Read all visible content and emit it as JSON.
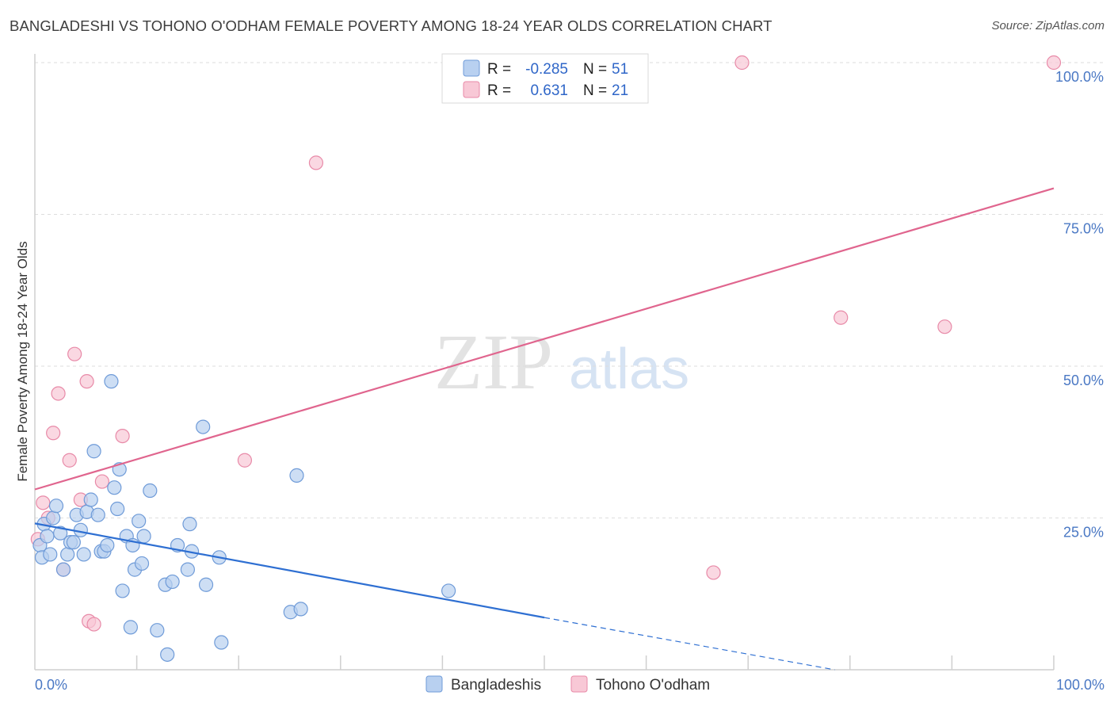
{
  "header": {
    "title": "BANGLADESHI VS TOHONO O'ODHAM FEMALE POVERTY AMONG 18-24 YEAR OLDS CORRELATION CHART",
    "source": "Source: ZipAtlas.com"
  },
  "watermark": {
    "zip": "ZIP",
    "atlas": "atlas"
  },
  "legend_top": {
    "rows": [
      {
        "r_label": "R =",
        "r_value": "-0.285",
        "n_label": "N =",
        "n_value": "51"
      },
      {
        "r_label": "R =",
        "r_value": "0.631",
        "n_label": "N =",
        "n_value": "21"
      }
    ]
  },
  "chart_data": {
    "type": "scatter",
    "title": "BANGLADESHI VS TOHONO O'ODHAM FEMALE POVERTY AMONG 18-24 YEAR OLDS CORRELATION CHART",
    "xlabel": "",
    "ylabel": "Female Poverty Among 18-24 Year Olds",
    "xlim": [
      0,
      100
    ],
    "ylim": [
      0,
      100
    ],
    "x_tick_labels": [
      "0.0%",
      "100.0%"
    ],
    "y_ticks": [
      25,
      50,
      75,
      100
    ],
    "y_tick_labels": [
      "25.0%",
      "50.0%",
      "75.0%",
      "100.0%"
    ],
    "grid": true,
    "legend_position": "bottom-center",
    "colors": {
      "blue_fill": "#b8d0f0",
      "blue_stroke": "#6f9bd8",
      "blue_line": "#2e6fd2",
      "pink_fill": "#f8c8d6",
      "pink_stroke": "#e88aa8",
      "pink_line": "#e0658e",
      "value_text": "#2f66c8"
    },
    "series": [
      {
        "name": "Bangladeshis",
        "r": -0.285,
        "n": 51,
        "trend": {
          "x0": 0,
          "y0": 24.1,
          "x1": 50,
          "y1": 8.6,
          "dashed_to_x": 78.5,
          "dashed_to_y": 0
        },
        "points": [
          [
            0.5,
            20.5
          ],
          [
            0.7,
            18.5
          ],
          [
            0.9,
            24.0
          ],
          [
            1.2,
            22.0
          ],
          [
            1.5,
            19.0
          ],
          [
            1.8,
            25.0
          ],
          [
            2.1,
            27.0
          ],
          [
            2.5,
            22.5
          ],
          [
            2.8,
            16.5
          ],
          [
            3.2,
            19.0
          ],
          [
            3.5,
            21.0
          ],
          [
            3.8,
            21.0
          ],
          [
            4.1,
            25.5
          ],
          [
            4.5,
            23.0
          ],
          [
            4.8,
            19.0
          ],
          [
            5.1,
            26.0
          ],
          [
            5.5,
            28.0
          ],
          [
            5.8,
            36.0
          ],
          [
            6.2,
            25.5
          ],
          [
            6.5,
            19.5
          ],
          [
            6.8,
            19.5
          ],
          [
            7.1,
            20.5
          ],
          [
            7.5,
            47.5
          ],
          [
            7.8,
            30.0
          ],
          [
            8.1,
            26.5
          ],
          [
            8.3,
            33.0
          ],
          [
            8.6,
            13.0
          ],
          [
            9.0,
            22.0
          ],
          [
            9.4,
            7.0
          ],
          [
            9.6,
            20.5
          ],
          [
            9.8,
            16.5
          ],
          [
            10.2,
            24.5
          ],
          [
            10.5,
            17.5
          ],
          [
            10.7,
            22.0
          ],
          [
            11.3,
            29.5
          ],
          [
            12.0,
            6.5
          ],
          [
            12.8,
            14.0
          ],
          [
            13.0,
            2.5
          ],
          [
            13.5,
            14.5
          ],
          [
            14.0,
            20.5
          ],
          [
            15.0,
            16.5
          ],
          [
            15.2,
            24.0
          ],
          [
            15.4,
            19.5
          ],
          [
            16.5,
            40.0
          ],
          [
            16.8,
            14.0
          ],
          [
            18.1,
            18.5
          ],
          [
            18.3,
            4.5
          ],
          [
            25.1,
            9.5
          ],
          [
            25.7,
            32.0
          ],
          [
            26.1,
            10.0
          ],
          [
            40.6,
            13.0
          ]
        ]
      },
      {
        "name": "Tohono O'odham",
        "r": 0.631,
        "n": 21,
        "trend": {
          "x0": 0,
          "y0": 29.7,
          "x1": 100,
          "y1": 79.3
        },
        "points": [
          [
            0.3,
            21.5
          ],
          [
            0.8,
            27.5
          ],
          [
            1.3,
            25.0
          ],
          [
            1.8,
            39.0
          ],
          [
            2.3,
            45.5
          ],
          [
            2.8,
            16.5
          ],
          [
            3.4,
            34.5
          ],
          [
            3.9,
            52.0
          ],
          [
            4.5,
            28.0
          ],
          [
            5.1,
            47.5
          ],
          [
            5.3,
            8.0
          ],
          [
            5.8,
            7.5
          ],
          [
            6.6,
            31.0
          ],
          [
            8.6,
            38.5
          ],
          [
            20.6,
            34.5
          ],
          [
            27.6,
            83.5
          ],
          [
            66.6,
            16.0
          ],
          [
            69.4,
            100.0
          ],
          [
            79.1,
            58.0
          ],
          [
            89.3,
            56.5
          ],
          [
            100.0,
            100.0
          ]
        ]
      }
    ]
  }
}
